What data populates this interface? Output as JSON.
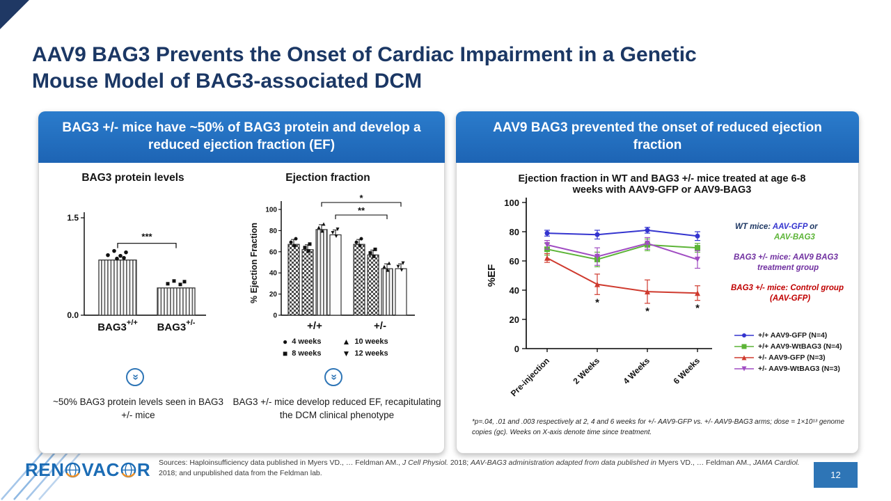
{
  "slide": {
    "title_lines": [
      "AAV9 BAG3 Prevents the Onset of Cardiac Impairment in a Genetic",
      "Mouse Model of BAG3-associated DCM"
    ],
    "page_number": "12"
  },
  "colors": {
    "navy_title": "#1b3764",
    "header_blue": "#1f6dbf",
    "page_badge_blue": "#2e75b6",
    "chevron_blue": "#2e75b6"
  },
  "left_panel": {
    "header": "BAG3 +/- mice have ~50% of BAG3 protein and develop a reduced ejection fraction (EF)",
    "protein_caption": "~50% BAG3 protein levels seen in BAG3 +/- mice",
    "ef_caption": "BAG3 +/- mice develop reduced EF, recapitulating the DCM clinical phenotype"
  },
  "right_panel": {
    "header": "AAV9 BAG3 prevented the onset of reduced ejection fraction",
    "annotations": [
      {
        "indent2": 56,
        "lines": [
          [
            {
              "t": "WT mice: ",
              "c": "#1f3864"
            },
            {
              "t": "AAV-GFP",
              "c": "#3434cf"
            },
            {
              "t": " or",
              "c": "#1f3864"
            }
          ],
          [
            {
              "t": "AAV-BAG3",
              "c": "#5cb437"
            }
          ]
        ]
      },
      {
        "indent2": 34,
        "lines": [
          [
            {
              "t": "BAG3 +/- mice: AAV9 BAG3",
              "c": "#7030a0"
            }
          ],
          [
            {
              "t": "treatment group",
              "c": "#7030a0"
            }
          ]
        ]
      },
      {
        "indent2": 56,
        "lines": [
          [
            {
              "t": "BAG3 +/- mice: Control group",
              "c": "#c00000"
            }
          ],
          [
            {
              "t": "(AAV-GFP)",
              "c": "#c00000"
            }
          ]
        ]
      }
    ],
    "footnote": "*p=.04, .01 and .003 respectively at 2, 4 and 6 weeks for +/- AAV9-GFP vs. +/- AAV9-BAG3 arms; dose = 1×10¹³ genome copies (gc).  Weeks on X-axis denote time since treatment."
  },
  "footer": {
    "logo": {
      "part1": "REN",
      "part2": "VAC",
      "part3": "R"
    },
    "sources_segments": [
      {
        "t": "Sources: Haploinsufficiency data published in Myers VD., … Feldman AM., ",
        "i": false
      },
      {
        "t": "J Cell Physiol.",
        "i": true
      },
      {
        "t": " 2018; ",
        "i": false
      },
      {
        "t": "AAV-BAG3 administration adapted from data published in ",
        "i": true
      },
      {
        "t": "Myers VD., … Feldman AM., ",
        "i": false
      },
      {
        "t": "JAMA Cardiol.",
        "i": true
      },
      {
        "t": " 2018; and unpublished data from the Feldman lab.",
        "i": false
      }
    ]
  },
  "chart_data": [
    {
      "id": "bag3-protein-levels",
      "type": "bar",
      "title": "BAG3 protein levels",
      "categories": [
        {
          "base": "BAG3",
          "sup": "+/+"
        },
        {
          "base": "BAG3",
          "sup": "+/-"
        }
      ],
      "values": [
        0.85,
        0.42
      ],
      "ylim": [
        0,
        1.5
      ],
      "yticks": [
        0.0,
        1.5
      ],
      "significance": "***",
      "xlabel": "",
      "ylabel": ""
    },
    {
      "id": "ejection-fraction-bars",
      "type": "bar",
      "title": "Ejection fraction",
      "ylabel": "% Ejection Fraction",
      "ylim": [
        0,
        100
      ],
      "yticks": [
        0,
        20,
        40,
        60,
        80,
        100
      ],
      "groups": [
        "+/+",
        "+/-"
      ],
      "legend": [
        {
          "marker": "circle",
          "label": "4 weeks"
        },
        {
          "marker": "square",
          "label": "8 weeks"
        },
        {
          "marker": "triangle-up",
          "label": "10 weeks"
        },
        {
          "marker": "triangle-down",
          "label": "12 weeks"
        }
      ],
      "values_by_group": [
        [
          67,
          62,
          81,
          76
        ],
        [
          67,
          57,
          44,
          44
        ]
      ],
      "significance": [
        {
          "label": "*",
          "from": [
            0,
            2
          ],
          "to": [
            1,
            3
          ],
          "y": 8
        },
        {
          "label": "**",
          "from": [
            0,
            3
          ],
          "to": [
            1,
            2
          ],
          "y": 26
        }
      ]
    },
    {
      "id": "ef-timecourse",
      "type": "line",
      "title": "Ejection fraction in WT and BAG3 +/- mice treated at age 6-8 weeks with AAV9-GFP or AAV9-BAG3",
      "ylabel": "%EF",
      "ylim": [
        0,
        100
      ],
      "yticks": [
        0,
        20,
        40,
        60,
        80,
        100
      ],
      "x": [
        "Pre-injection",
        "2 Weeks",
        "4 Weeks",
        "6 Weeks"
      ],
      "star_label": "*",
      "series": [
        {
          "name": "+/+ AAV9-GFP (N=4)",
          "color": "#3434cf",
          "marker": "circle",
          "values": [
            79,
            78,
            81,
            77
          ],
          "err": [
            2,
            3,
            2,
            3
          ]
        },
        {
          "name": "+/+ AAV9-WtBAG3 (N=4)",
          "color": "#5cb437",
          "marker": "square",
          "values": [
            68,
            61,
            71,
            69
          ],
          "err": [
            4,
            5,
            4,
            3
          ]
        },
        {
          "name": "+/- AAV9-GFP (N=3)",
          "color": "#cf3a2e",
          "marker": "triangle-up",
          "values": [
            62,
            44,
            39,
            38
          ],
          "err": [
            3,
            7,
            8,
            5
          ],
          "star_points": [
            1,
            2,
            3
          ]
        },
        {
          "name": "+/- AAV9-WtBAG3 (N=3)",
          "color": "#a04cc2",
          "marker": "triangle-down",
          "values": [
            71,
            63,
            72,
            61
          ],
          "err": [
            3,
            6,
            4,
            6
          ]
        }
      ]
    }
  ]
}
